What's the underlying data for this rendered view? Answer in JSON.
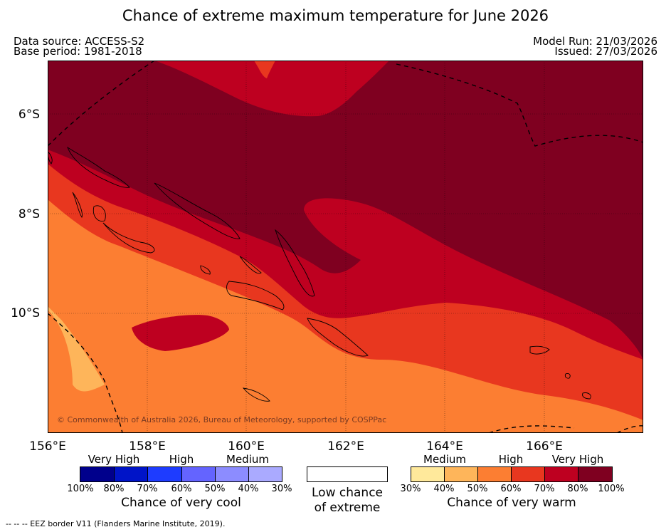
{
  "title": "Chance of extreme maximum temperature for June 2026",
  "info": {
    "data_source": "Data source: ACCESS-S2",
    "base_period": "Base period: 1981-2018",
    "model_run": "Model Run: 21/03/2026",
    "issued": "Issued: 27/03/2026"
  },
  "map": {
    "lat_labels": [
      "6°S",
      "8°S",
      "10°S"
    ],
    "lon_labels": [
      "156°E",
      "158°E",
      "160°E",
      "162°E",
      "164°E",
      "166°E"
    ],
    "copyright": "© Commonwealth of Australia 2026, Bureau of Meteorology, supported by COSPPac",
    "colors": {
      "very_high": "#7f0020",
      "high_80": "#be0020",
      "high_70": "#e8371f",
      "medium_60": "#fc7e32",
      "medium_50": "#feb55a",
      "medium_40": "#ffe99b"
    }
  },
  "legend": {
    "cool": {
      "categories": [
        "Very High",
        "High",
        "Medium"
      ],
      "percents": [
        "100%",
        "80%",
        "70%",
        "60%",
        "50%",
        "40%",
        "30%"
      ],
      "colors": [
        "#00008c",
        "#0014c8",
        "#1e3cff",
        "#6464ff",
        "#8c8cff",
        "#aaaaff"
      ],
      "label": "Chance of very cool"
    },
    "low": {
      "line1": "Low chance",
      "line2": "of extreme"
    },
    "warm": {
      "categories": [
        "Medium",
        "High",
        "Very High"
      ],
      "percents": [
        "30%",
        "40%",
        "50%",
        "60%",
        "70%",
        "80%",
        "100%"
      ],
      "colors": [
        "#ffe99b",
        "#feb55a",
        "#fc7e32",
        "#e8371f",
        "#be0020",
        "#7f0020"
      ],
      "label": "Chance of very warm"
    }
  },
  "footnote": "--  --  -- EEZ border V11 (Flanders Marine Institute, 2019)."
}
